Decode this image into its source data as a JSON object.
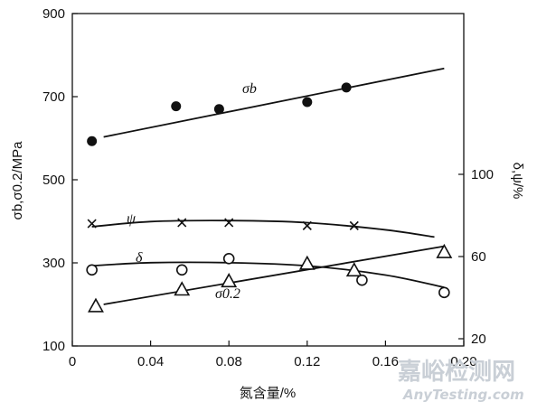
{
  "chart_data": {
    "type": "scatter",
    "xlabel": "氮含量/%",
    "ylabel": "σb,σ0.2/MPa",
    "y2label": "δ,ψ/%",
    "xlim": [
      0,
      0.2
    ],
    "ylim": [
      100,
      900
    ],
    "y2lim": [
      20,
      60
    ],
    "x_ticks": [
      "0",
      "0.04",
      "0.08",
      "0.12",
      "0.16",
      "0.20"
    ],
    "y_ticks": [
      "100",
      "300",
      "500",
      "700",
      "900"
    ],
    "y2_ticks": [
      "20",
      "60",
      "100"
    ],
    "series": [
      {
        "name": "σb",
        "marker": "filled-circle",
        "axis": "left",
        "x": [
          0.01,
          0.053,
          0.075,
          0.12,
          0.14
        ],
        "y": [
          593,
          677,
          670,
          687,
          722
        ],
        "fit_x": [
          0.016,
          0.19
        ],
        "fit_y": [
          603,
          768
        ]
      },
      {
        "name": "σ0.2",
        "marker": "open-triangle",
        "axis": "left",
        "x": [
          0.012,
          0.056,
          0.08,
          0.12,
          0.144,
          0.19
        ],
        "y": [
          195,
          235,
          255,
          297,
          281,
          325
        ],
        "fit_x": [
          0.016,
          0.19
        ],
        "fit_y": [
          200,
          340
        ]
      },
      {
        "name": "ψ",
        "marker": "cross",
        "axis": "right",
        "x": [
          0.01,
          0.056,
          0.08,
          0.12,
          0.144
        ],
        "y": [
          76,
          76.5,
          76.5,
          75,
          75
        ],
        "fit_x": [
          0.01,
          0.04,
          0.08,
          0.12,
          0.16,
          0.185
        ],
        "fit_y": [
          74.5,
          77,
          77.5,
          76.5,
          73,
          69.5
        ]
      },
      {
        "name": "δ",
        "marker": "open-circle",
        "axis": "right",
        "x": [
          0.01,
          0.056,
          0.08,
          0.148,
          0.19
        ],
        "y": [
          53.5,
          53.5,
          59,
          48.5,
          42.5
        ],
        "fit_x": [
          0.01,
          0.04,
          0.08,
          0.12,
          0.16,
          0.19
        ],
        "fit_y": [
          55.5,
          57,
          57,
          55.5,
          51,
          45
        ]
      }
    ],
    "labels": [
      {
        "text": "σb",
        "series": "σb"
      },
      {
        "text": "ψ",
        "series": "ψ"
      },
      {
        "text": "δ",
        "series": "δ"
      },
      {
        "text": "σ0.2",
        "series": "σ0.2"
      }
    ]
  },
  "watermark": {
    "cn": "嘉峪检测网",
    "en": "AnyTesting.com"
  }
}
